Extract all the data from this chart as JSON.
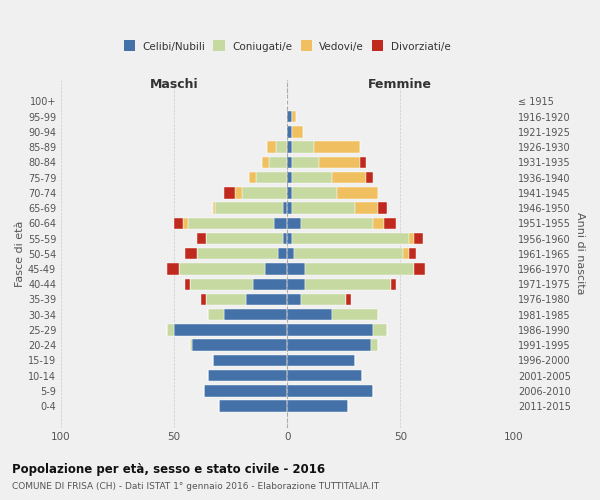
{
  "age_groups": [
    "0-4",
    "5-9",
    "10-14",
    "15-19",
    "20-24",
    "25-29",
    "30-34",
    "35-39",
    "40-44",
    "45-49",
    "50-54",
    "55-59",
    "60-64",
    "65-69",
    "70-74",
    "75-79",
    "80-84",
    "85-89",
    "90-94",
    "95-99",
    "100+"
  ],
  "birth_years": [
    "2011-2015",
    "2006-2010",
    "2001-2005",
    "1996-2000",
    "1991-1995",
    "1986-1990",
    "1981-1985",
    "1976-1980",
    "1971-1975",
    "1966-1970",
    "1961-1965",
    "1956-1960",
    "1951-1955",
    "1946-1950",
    "1941-1945",
    "1936-1940",
    "1931-1935",
    "1926-1930",
    "1921-1925",
    "1916-1920",
    "≤ 1915"
  ],
  "males": {
    "celibi": [
      30,
      37,
      35,
      33,
      42,
      50,
      28,
      18,
      15,
      10,
      4,
      2,
      6,
      2,
      0,
      0,
      0,
      0,
      0,
      0,
      0
    ],
    "coniugati": [
      0,
      0,
      0,
      0,
      1,
      3,
      7,
      18,
      28,
      38,
      36,
      34,
      38,
      30,
      20,
      14,
      8,
      5,
      0,
      0,
      0
    ],
    "vedovi": [
      0,
      0,
      0,
      0,
      0,
      0,
      0,
      0,
      0,
      0,
      0,
      0,
      2,
      1,
      3,
      3,
      3,
      4,
      0,
      0,
      0
    ],
    "divorziati": [
      0,
      0,
      0,
      0,
      0,
      0,
      0,
      2,
      2,
      5,
      5,
      4,
      4,
      0,
      5,
      0,
      0,
      0,
      0,
      0,
      0
    ]
  },
  "females": {
    "nubili": [
      27,
      38,
      33,
      30,
      37,
      38,
      20,
      6,
      8,
      8,
      3,
      2,
      6,
      2,
      2,
      2,
      2,
      2,
      2,
      2,
      0
    ],
    "coniugate": [
      0,
      0,
      0,
      0,
      3,
      6,
      20,
      20,
      38,
      48,
      48,
      52,
      32,
      28,
      20,
      18,
      12,
      10,
      0,
      0,
      0
    ],
    "vedove": [
      0,
      0,
      0,
      0,
      0,
      0,
      0,
      0,
      0,
      0,
      3,
      2,
      5,
      10,
      18,
      15,
      18,
      20,
      5,
      2,
      0
    ],
    "divorziate": [
      0,
      0,
      0,
      0,
      0,
      0,
      0,
      2,
      2,
      5,
      3,
      4,
      5,
      4,
      0,
      3,
      3,
      0,
      0,
      0,
      0
    ]
  },
  "colors": {
    "celibi": "#4472a8",
    "coniugati": "#c5d9a0",
    "vedovi": "#f0c060",
    "divorziati": "#c0291e"
  },
  "title": "Popolazione per età, sesso e stato civile - 2016",
  "subtitle": "COMUNE DI FRISA (CH) - Dati ISTAT 1° gennaio 2016 - Elaborazione TUTTITALIA.IT",
  "xlabel_left": "Maschi",
  "xlabel_right": "Femmine",
  "ylabel_left": "Fasce di età",
  "ylabel_right": "Anni di nascita",
  "xlim": 100,
  "legend_labels": [
    "Celibi/Nubili",
    "Coniugati/e",
    "Vedovi/e",
    "Divorziati/e"
  ],
  "background_color": "#f0f0f0",
  "bar_height": 0.75
}
